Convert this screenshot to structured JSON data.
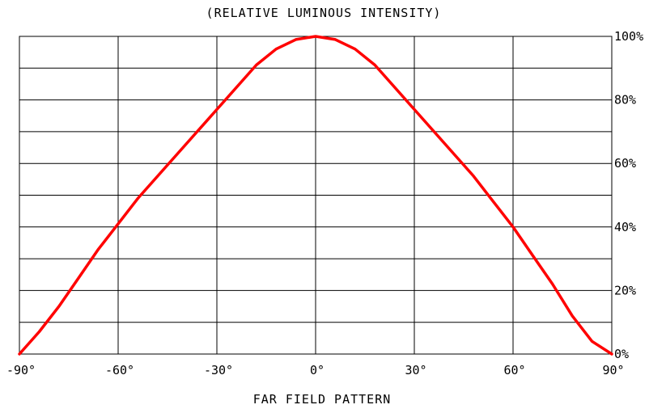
{
  "chart_data": {
    "type": "line",
    "title": "(RELATIVE LUMINOUS INTENSITY)",
    "xlabel": "FAR FIELD PATTERN",
    "ylabel": "",
    "xlim": [
      -90,
      90
    ],
    "ylim": [
      0,
      100
    ],
    "x_ticks": [
      -90,
      -60,
      -30,
      0,
      30,
      60,
      90
    ],
    "x_tick_labels": [
      "-90°",
      "-60°",
      "-30°",
      "0°",
      "30°",
      "60°",
      "90°"
    ],
    "y_ticks": [
      0,
      20,
      40,
      60,
      80,
      100
    ],
    "y_tick_labels": [
      "0%",
      "20%",
      "40%",
      "60%",
      "80%",
      "100%"
    ],
    "grid": true,
    "y_axis_position": "right",
    "series": [
      {
        "color": "#ff0000",
        "x": [
          -90,
          -84,
          -78,
          -72,
          -66,
          -60,
          -54,
          -48,
          -42,
          -36,
          -30,
          -24,
          -18,
          -12,
          -6,
          0,
          6,
          12,
          18,
          24,
          30,
          36,
          42,
          48,
          54,
          60,
          66,
          72,
          78,
          84,
          90
        ],
        "y": [
          0,
          7,
          15,
          24,
          33,
          41,
          49,
          56,
          63,
          70,
          77,
          84,
          91,
          96,
          99,
          100,
          99,
          96,
          91,
          84,
          77,
          70,
          63,
          56,
          48,
          40,
          31,
          22,
          12,
          4,
          0
        ]
      }
    ]
  }
}
